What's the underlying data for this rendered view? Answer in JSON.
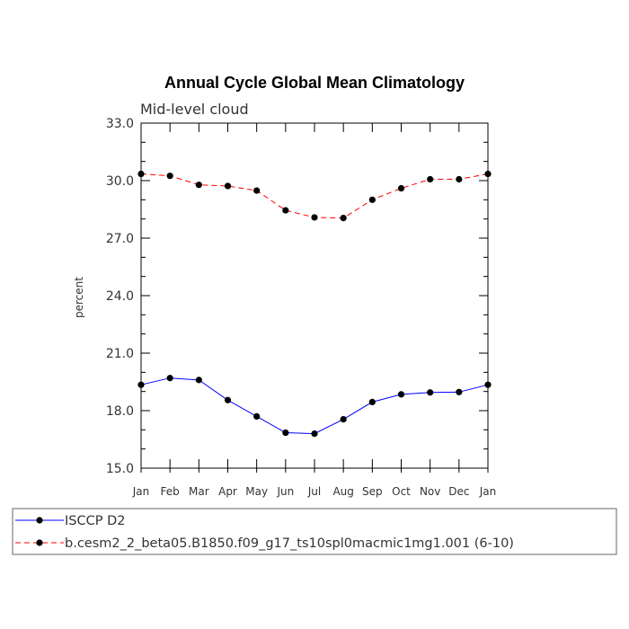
{
  "chart_data": {
    "type": "line",
    "title": "Annual Cycle Global Mean Climatology",
    "subtitle": "Mid-level cloud",
    "xlabel": "",
    "ylabel": "percent",
    "ylim": [
      15.0,
      33.0
    ],
    "yticks": [
      "15.0",
      "18.0",
      "21.0",
      "24.0",
      "27.0",
      "30.0",
      "33.0"
    ],
    "categories": [
      "Jan",
      "Feb",
      "Mar",
      "Apr",
      "May",
      "Jun",
      "Jul",
      "Aug",
      "Sep",
      "Oct",
      "Nov",
      "Dec",
      "Jan"
    ],
    "grid": false,
    "legend_position": "bottom",
    "series": [
      {
        "name": "ISCCP D2",
        "color": "#0000ff",
        "dash": "solid",
        "values": [
          19.35,
          19.7,
          19.6,
          18.55,
          17.7,
          16.85,
          16.8,
          17.55,
          18.45,
          18.85,
          18.95,
          18.97,
          19.35
        ]
      },
      {
        "name": "b.cesm2_2_beta05.B1850.f09_g17_ts10spl0macmic1mg1.001 (6-10)",
        "color": "#ff0000",
        "dash": "dashed",
        "values": [
          30.35,
          30.25,
          29.78,
          29.72,
          29.48,
          28.45,
          28.08,
          28.05,
          29.0,
          29.6,
          30.07,
          30.07,
          30.35
        ]
      }
    ]
  }
}
